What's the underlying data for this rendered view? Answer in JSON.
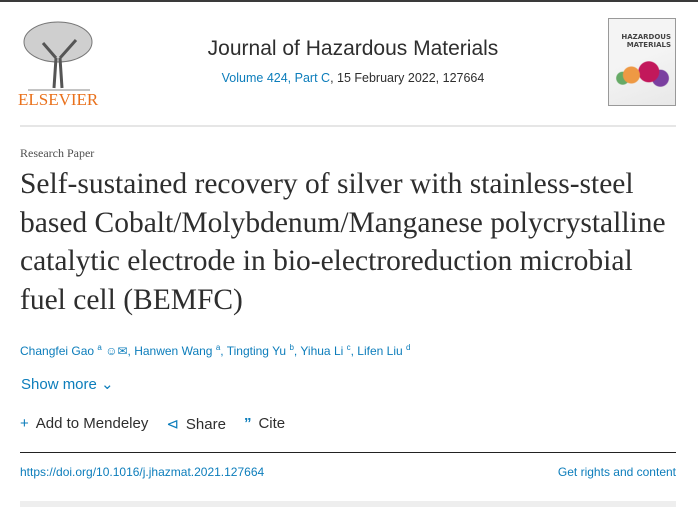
{
  "publisher": {
    "name": "ELSEVIER"
  },
  "journal": {
    "title": "Journal of Hazardous Materials",
    "volume_link": "Volume 424, Part C",
    "details": ", 15 February 2022, 127664",
    "cover_text": "HAZARDOUS MATERIALS"
  },
  "article": {
    "type": "Research Paper",
    "title": "Self-sustained recovery of silver with stainless-steel based Cobalt/Molybdenum/Manganese polycrystalline catalytic electrode in bio-electroreduction microbial fuel cell (BEMFC)"
  },
  "authors": [
    {
      "name": "Changfei Gao",
      "sup": "a"
    },
    {
      "name": "Hanwen Wang",
      "sup": "a"
    },
    {
      "name": "Tingting Yu",
      "sup": "b"
    },
    {
      "name": "Yihua Li",
      "sup": "c"
    },
    {
      "name": "Lifen Liu",
      "sup": "d"
    }
  ],
  "show_more": "Show more",
  "actions": {
    "mendeley": "Add to Mendeley",
    "share": "Share",
    "cite": "Cite"
  },
  "doi": "https://doi.org/10.1016/j.jhazmat.2021.127664",
  "rights": "Get rights and content",
  "colors": {
    "link": "#0c7dbb",
    "elsevier": "#e9711c"
  }
}
